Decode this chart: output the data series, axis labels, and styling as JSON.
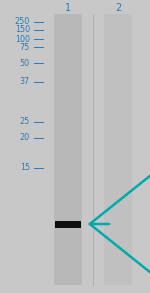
{
  "fig_width": 1.5,
  "fig_height": 2.93,
  "dpi": 100,
  "bg_color": "#c8c8c8",
  "lane_labels": [
    "1",
    "2"
  ],
  "lane_label_color": "#2a7db5",
  "lane_label_fontsize": 7.0,
  "mw_markers": [
    250,
    150,
    100,
    75,
    50,
    37,
    25,
    20,
    15
  ],
  "mw_color": "#2a7db5",
  "mw_fontsize": 5.8,
  "lane_color": "#b8b8b8",
  "lane2_color": "#c0c0c0",
  "band_color": "#111111",
  "band_dark_color": "#222222",
  "arrow_color": "#00aaaa",
  "separator_color": "#a0a0a0"
}
